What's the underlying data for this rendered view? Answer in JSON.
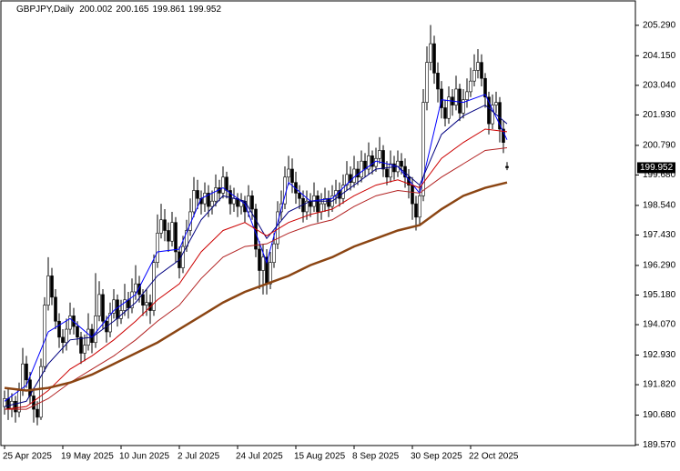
{
  "chart_data": {
    "type": "candlestick",
    "title": "GBPJPY,Daily",
    "categories": [
      "25 Apr 2025",
      null,
      null,
      null,
      null,
      null,
      null,
      null,
      null,
      null,
      null,
      null,
      null,
      null,
      null,
      null,
      "19 May 2025",
      null,
      null,
      null,
      null,
      null,
      null,
      null,
      null,
      null,
      null,
      null,
      null,
      null,
      null,
      null,
      "10 Jun 2025",
      null,
      null,
      null,
      null,
      null,
      null,
      null,
      null,
      null,
      null,
      null,
      null,
      null,
      null,
      null,
      "2 Jul 2025",
      null,
      null,
      null,
      null,
      null,
      null,
      null,
      null,
      null,
      null,
      null,
      null,
      null,
      null,
      null,
      "24 Jul 2025",
      null,
      null,
      null,
      null,
      null,
      null,
      null,
      null,
      null,
      null,
      null,
      null,
      null,
      null,
      null,
      "15 Aug 2025",
      null,
      null,
      null,
      null,
      null,
      null,
      null,
      null,
      null,
      null,
      null,
      null,
      null,
      null,
      null,
      "8 Sep 2025",
      null,
      null,
      null,
      null,
      null,
      null,
      null,
      null,
      null,
      null,
      null,
      null,
      null,
      null,
      null,
      "30 Sep 2025",
      null,
      null,
      null,
      null,
      null,
      null,
      null,
      null,
      null,
      null,
      null,
      null,
      null,
      null,
      null,
      "22 Oct 2025",
      null,
      null,
      null,
      null,
      null,
      null,
      null,
      null,
      null,
      null
    ],
    "open": [
      191.0,
      191.3,
      190.9,
      191.2,
      190.8,
      191.6,
      192.6,
      192.0,
      191.4,
      190.9,
      190.6,
      192.5,
      194.8,
      195.9,
      195.1,
      194.2,
      193.6,
      193.4,
      193.9,
      194.4,
      194.0,
      193.6,
      193.0,
      193.3,
      193.9,
      193.4,
      194.4,
      195.2,
      194.2,
      193.8,
      194.5,
      195.0,
      194.3,
      194.6,
      195.0,
      194.7,
      195.3,
      195.6,
      195.2,
      194.8,
      194.9,
      194.6,
      196.4,
      197.5,
      198.0,
      197.6,
      197.2,
      197.9,
      196.8,
      196.2,
      197.0,
      197.6,
      198.3,
      199.1,
      198.8,
      198.6,
      199.0,
      198.5,
      198.7,
      199.2,
      199.0,
      199.6,
      199.1,
      198.6,
      198.8,
      198.5,
      198.7,
      198.3,
      198.9,
      198.4,
      196.9,
      196.1,
      196.6,
      195.6,
      196.4,
      197.1,
      198.3,
      198.6,
      199.6,
      199.9,
      199.4,
      199.0,
      198.8,
      198.3,
      198.7,
      198.5,
      198.9,
      198.3,
      198.6,
      198.8,
      198.5,
      198.9,
      199.1,
      198.8,
      199.3,
      199.7,
      199.4,
      199.9,
      199.6,
      200.2,
      199.9,
      200.4,
      200.0,
      200.3,
      200.6,
      199.9,
      199.6,
      200.1,
      199.8,
      200.2,
      200.0,
      199.6,
      199.3,
      198.6,
      198.1,
      198.9,
      202.4,
      203.9,
      204.6,
      203.5,
      202.9,
      202.2,
      201.8,
      202.6,
      202.3,
      202.9,
      202.0,
      202.5,
      202.8,
      203.2,
      203.6,
      203.9,
      203.3,
      202.6,
      201.6,
      202.3,
      202.4,
      201.4,
      200.002
    ],
    "high": [
      191.6,
      191.7,
      191.5,
      191.4,
      191.9,
      193.2,
      192.9,
      192.3,
      191.7,
      191.2,
      192.8,
      195.1,
      196.6,
      196.2,
      195.4,
      194.5,
      193.9,
      194.3,
      194.9,
      194.7,
      194.2,
      193.8,
      193.7,
      194.5,
      194.1,
      196.0,
      195.7,
      195.4,
      194.4,
      194.9,
      195.4,
      195.2,
      195.0,
      195.6,
      195.3,
      195.8,
      196.3,
      195.9,
      195.4,
      195.4,
      195.2,
      196.7,
      198.2,
      198.6,
      198.4,
      197.9,
      198.3,
      198.1,
      197.0,
      197.4,
      198.0,
      198.8,
      199.6,
      199.5,
      199.1,
      199.4,
      199.3,
      199.1,
      199.7,
      199.5,
      200.0,
      199.8,
      199.3,
      199.2,
      199.0,
      199.0,
      198.9,
      199.3,
      199.1,
      198.6,
      197.2,
      197.1,
      196.9,
      196.8,
      197.5,
      198.7,
      199.1,
      200.0,
      200.4,
      200.3,
      199.8,
      199.3,
      199.1,
      199.1,
      199.0,
      199.4,
      199.1,
      199.0,
      199.2,
      199.1,
      199.3,
      199.5,
      199.4,
      199.7,
      200.2,
      200.0,
      200.4,
      200.2,
      200.6,
      200.5,
      200.9,
      200.6,
      200.7,
      201.1,
      200.8,
      200.2,
      200.6,
      200.4,
      200.6,
      200.5,
      200.3,
      199.9,
      199.6,
      198.9,
      199.3,
      202.9,
      204.5,
      205.3,
      204.9,
      203.9,
      203.2,
      202.5,
      203.0,
      202.9,
      203.4,
      203.1,
      202.9,
      203.3,
      203.7,
      204.2,
      204.4,
      204.2,
      203.5,
      202.8,
      202.7,
      202.8,
      202.6,
      201.7,
      200.165
    ],
    "low": [
      190.7,
      190.5,
      190.6,
      190.4,
      190.6,
      191.4,
      191.7,
      191.1,
      190.4,
      190.3,
      190.5,
      192.3,
      194.6,
      194.8,
      193.9,
      193.2,
      193.0,
      193.1,
      193.7,
      193.7,
      193.3,
      192.6,
      192.7,
      193.1,
      193.0,
      193.2,
      194.2,
      193.9,
      193.4,
      193.6,
      194.3,
      194.0,
      194.1,
      194.4,
      194.3,
      194.5,
      195.0,
      194.9,
      194.4,
      194.4,
      194.1,
      194.4,
      196.2,
      197.3,
      197.2,
      196.8,
      197.0,
      196.4,
      195.8,
      196.0,
      196.8,
      197.4,
      198.1,
      198.4,
      198.2,
      198.3,
      198.1,
      198.2,
      198.5,
      198.7,
      198.8,
      198.8,
      198.2,
      198.3,
      198.1,
      198.2,
      197.9,
      198.1,
      198.0,
      196.6,
      195.4,
      195.2,
      195.2,
      195.4,
      196.2,
      196.9,
      198.0,
      198.4,
      199.3,
      199.0,
      198.6,
      198.4,
      197.9,
      198.0,
      198.1,
      198.3,
      197.9,
      198.0,
      198.3,
      198.1,
      198.3,
      198.6,
      198.5,
      198.6,
      199.1,
      199.1,
      199.2,
      199.3,
      199.4,
      199.6,
      199.7,
      199.7,
      199.8,
      200.1,
      199.6,
      199.3,
      199.4,
      199.5,
      199.6,
      199.7,
      199.2,
      198.8,
      198.0,
      197.6,
      197.8,
      198.7,
      202.1,
      203.6,
      203.1,
      202.4,
      201.8,
      201.5,
      201.6,
      201.9,
      202.1,
      201.7,
      201.8,
      202.2,
      202.6,
      203.0,
      203.3,
      203.0,
      202.2,
      201.2,
      201.4,
      202.0,
      200.9,
      200.5,
      199.861
    ],
    "close": [
      191.3,
      190.9,
      191.2,
      190.8,
      191.6,
      192.6,
      192.0,
      191.4,
      190.9,
      190.6,
      192.5,
      194.8,
      195.9,
      195.1,
      194.2,
      193.6,
      193.4,
      193.9,
      194.4,
      194.0,
      193.6,
      193.0,
      193.3,
      193.9,
      193.4,
      194.4,
      195.2,
      194.2,
      193.8,
      194.5,
      195.0,
      194.3,
      194.6,
      195.0,
      194.7,
      195.3,
      195.6,
      195.2,
      194.8,
      194.9,
      194.6,
      196.4,
      197.5,
      198.0,
      197.6,
      197.2,
      197.9,
      196.8,
      196.2,
      197.0,
      197.6,
      198.3,
      199.1,
      198.8,
      198.6,
      199.0,
      198.5,
      198.7,
      199.2,
      199.0,
      199.6,
      199.1,
      198.6,
      198.8,
      198.5,
      198.7,
      198.3,
      198.9,
      198.4,
      196.9,
      196.1,
      196.6,
      195.6,
      196.4,
      197.1,
      198.3,
      198.6,
      199.6,
      199.9,
      199.4,
      199.0,
      198.8,
      198.3,
      198.7,
      198.5,
      198.9,
      198.3,
      198.6,
      198.8,
      198.5,
      198.9,
      199.1,
      198.8,
      199.3,
      199.7,
      199.4,
      199.9,
      199.6,
      200.2,
      199.9,
      200.4,
      200.0,
      200.3,
      200.6,
      199.9,
      199.6,
      200.1,
      199.8,
      200.2,
      200.0,
      199.6,
      199.3,
      198.6,
      198.1,
      198.9,
      202.4,
      203.9,
      204.6,
      203.5,
      202.9,
      202.2,
      201.8,
      202.6,
      202.3,
      202.9,
      202.0,
      202.5,
      202.8,
      203.2,
      203.6,
      203.9,
      203.3,
      202.6,
      201.6,
      202.3,
      202.4,
      201.4,
      200.9,
      199.952
    ],
    "ma_x": [
      0,
      6,
      12,
      18,
      24,
      30,
      36,
      42,
      48,
      54,
      60,
      66,
      72,
      78,
      84,
      90,
      96,
      102,
      108,
      114,
      120,
      126,
      132,
      138
    ],
    "moving_averages": [
      {
        "color": "#0000ff",
        "values": [
          191.2,
          191.8,
          193.8,
          194.3,
          193.6,
          194.6,
          195.2,
          196.8,
          196.9,
          198.8,
          199.2,
          198.6,
          196.4,
          199.4,
          198.7,
          198.8,
          199.6,
          200.2,
          200.0,
          199.0,
          202.5,
          202.4,
          202.7,
          201.0
        ]
      },
      {
        "color": "#000080",
        "values": [
          191.0,
          191.2,
          192.6,
          193.5,
          193.6,
          194.2,
          194.9,
          195.9,
          196.5,
          198.0,
          198.9,
          198.7,
          197.3,
          198.3,
          198.7,
          198.7,
          199.3,
          199.9,
          200.0,
          199.3,
          201.2,
          201.9,
          202.3,
          201.6
        ]
      },
      {
        "color": "#cc0000",
        "values": [
          190.9,
          191.0,
          191.6,
          192.4,
          192.9,
          193.5,
          194.2,
          195.0,
          195.6,
          196.8,
          197.6,
          197.9,
          197.4,
          197.9,
          198.2,
          198.4,
          198.9,
          199.3,
          199.5,
          199.2,
          200.3,
          200.9,
          201.4,
          201.3
        ]
      },
      {
        "color": "#b22222",
        "values": [
          190.9,
          190.9,
          191.3,
          191.9,
          192.4,
          192.9,
          193.5,
          194.2,
          194.8,
          195.8,
          196.6,
          197.0,
          197.1,
          197.5,
          197.8,
          198.0,
          198.5,
          198.9,
          199.1,
          199.0,
          199.6,
          200.1,
          200.6,
          200.7
        ]
      },
      {
        "color": "#8b4513",
        "values": [
          191.7,
          191.6,
          191.7,
          191.9,
          192.2,
          192.6,
          193.0,
          193.4,
          193.9,
          194.4,
          194.9,
          195.3,
          195.6,
          195.9,
          196.3,
          196.6,
          197.0,
          197.3,
          197.6,
          197.8,
          198.4,
          198.9,
          199.2,
          199.4
        ]
      }
    ],
    "ylim": [
      189.54,
      206.17
    ],
    "yticks": [
      {
        "value": 189.57,
        "label": "189.570"
      },
      {
        "value": 190.68,
        "label": "190.680"
      },
      {
        "value": 191.82,
        "label": "191.820"
      },
      {
        "value": 192.93,
        "label": "192.930"
      },
      {
        "value": 194.07,
        "label": "194.070"
      },
      {
        "value": 195.18,
        "label": "195.180"
      },
      {
        "value": 196.29,
        "label": "196.290"
      },
      {
        "value": 197.43,
        "label": "197.430"
      },
      {
        "value": 198.54,
        "label": "198.540"
      },
      {
        "value": 199.68,
        "label": "199.680"
      },
      {
        "value": 200.79,
        "label": "200.790"
      },
      {
        "value": 201.93,
        "label": "201.930"
      },
      {
        "value": 203.04,
        "label": "203.040"
      },
      {
        "value": 204.15,
        "label": "204.150"
      },
      {
        "value": 205.29,
        "label": "205.290"
      }
    ],
    "grid": false
  }
}
